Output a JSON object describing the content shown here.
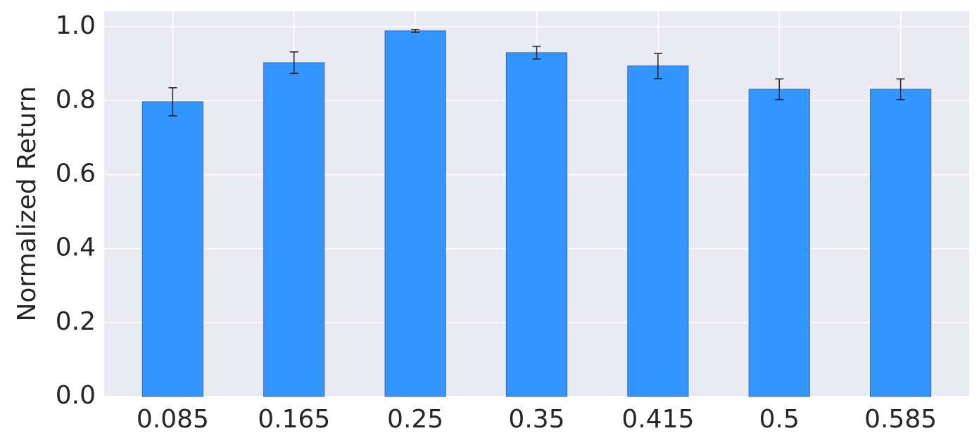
{
  "chart_data": {
    "type": "bar",
    "y_label": "Normalized Return",
    "categories": [
      "0.085",
      "0.165",
      "0.25",
      "0.35",
      "0.415",
      "0.5",
      "0.585"
    ],
    "values": [
      0.797,
      0.903,
      0.989,
      0.93,
      0.894,
      0.831,
      0.831
    ],
    "errors": [
      0.038,
      0.029,
      0.004,
      0.017,
      0.034,
      0.028,
      0.028
    ],
    "color": "#3396ff",
    "ylim": [
      0,
      1.042
    ],
    "yticks": [
      {
        "value": 0,
        "label": "0.0"
      },
      0.2,
      0.4,
      0.6,
      0.8,
      {
        "value": 1,
        "label": "1.0"
      }
    ],
    "grid": true
  }
}
